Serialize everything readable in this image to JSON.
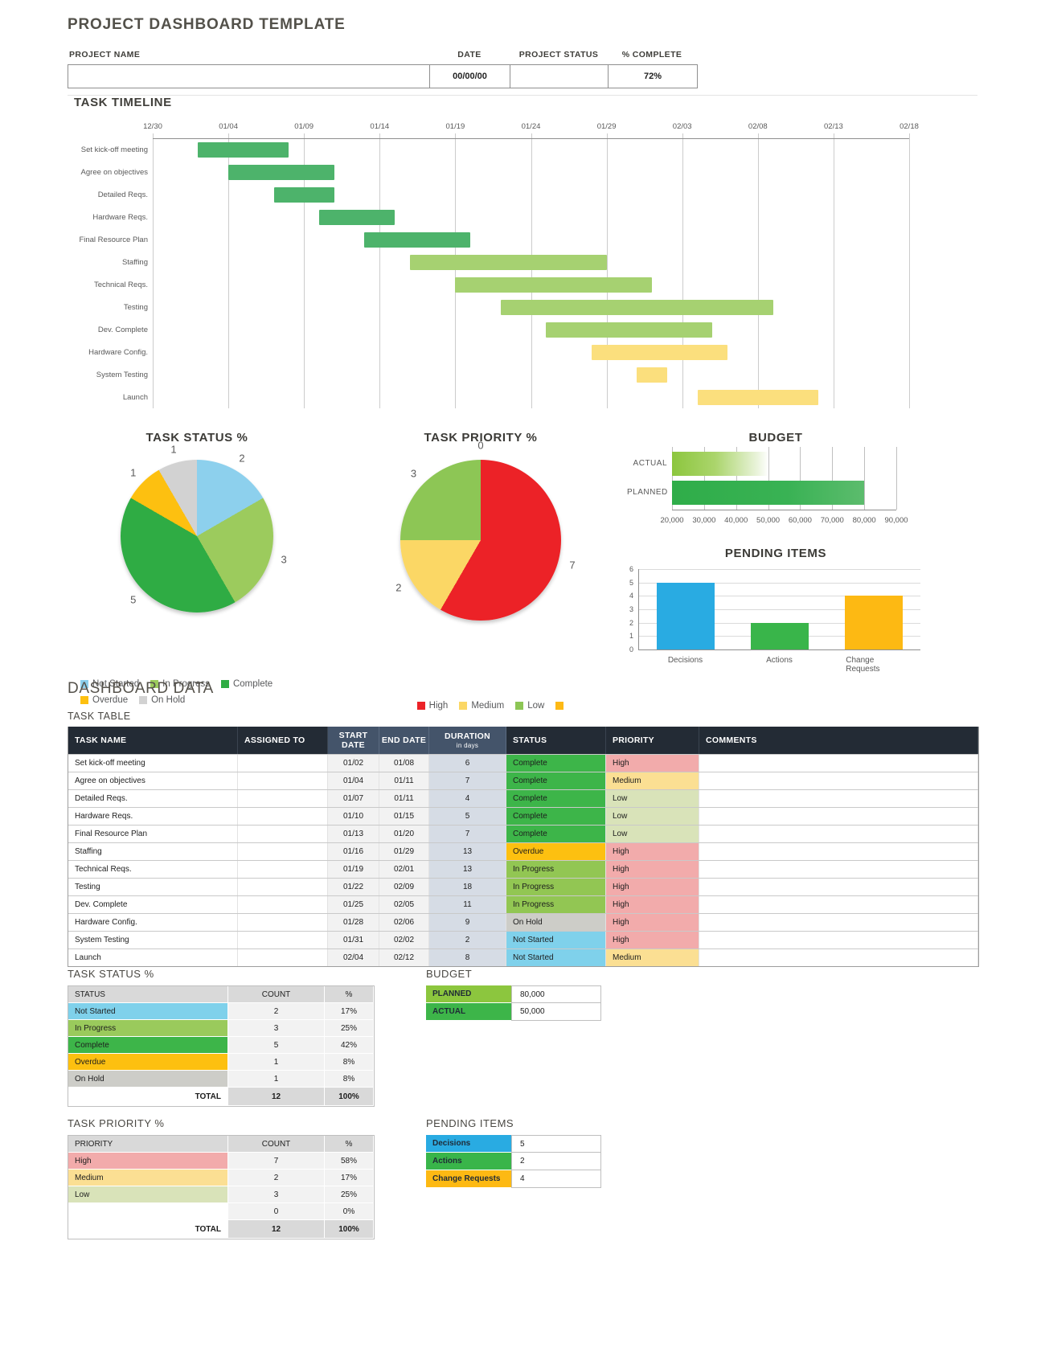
{
  "title": "PROJECT DASHBOARD TEMPLATE",
  "project_info": {
    "fields": [
      {
        "label": "PROJECT NAME",
        "value": ""
      },
      {
        "label": "DATE",
        "value": "00/00/00"
      },
      {
        "label": "PROJECT STATUS",
        "value": ""
      },
      {
        "label": "% COMPLETE",
        "value": "72%"
      }
    ]
  },
  "sections": {
    "task_timeline": "TASK TIMELINE",
    "task_status": "TASK STATUS %",
    "task_priority": "TASK PRIORITY %",
    "budget": "BUDGET",
    "pending_items": "PENDING ITEMS",
    "dashboard_data": "DASHBOARD DATA",
    "task_table": "TASK TABLE"
  },
  "chart_data": [
    {
      "type": "gantt",
      "title": "TASK TIMELINE",
      "x_ticks": [
        "12/30",
        "01/04",
        "01/09",
        "01/14",
        "01/19",
        "01/24",
        "01/29",
        "02/03",
        "02/08",
        "02/13",
        "02/18"
      ],
      "day_span": 50,
      "tasks": [
        {
          "name": "Set kick-off meeting",
          "start_day": 3,
          "duration": 6,
          "color": "#4DB36B"
        },
        {
          "name": "Agree on objectives",
          "start_day": 5,
          "duration": 7,
          "color": "#4DB36B"
        },
        {
          "name": "Detailed Reqs.",
          "start_day": 8,
          "duration": 4,
          "color": "#4DB36B"
        },
        {
          "name": "Hardware Reqs.",
          "start_day": 11,
          "duration": 5,
          "color": "#4DB36B"
        },
        {
          "name": "Final Resource Plan",
          "start_day": 14,
          "duration": 7,
          "color": "#4DB36B"
        },
        {
          "name": "Staffing",
          "start_day": 17,
          "duration": 13,
          "color": "#A6D171"
        },
        {
          "name": "Technical Reqs.",
          "start_day": 20,
          "duration": 13,
          "color": "#A6D171"
        },
        {
          "name": "Testing",
          "start_day": 23,
          "duration": 18,
          "color": "#A6D171"
        },
        {
          "name": "Dev. Complete",
          "start_day": 26,
          "duration": 11,
          "color": "#A6D171"
        },
        {
          "name": "Hardware Config.",
          "start_day": 29,
          "duration": 9,
          "color": "#FBDF7D"
        },
        {
          "name": "System Testing",
          "start_day": 32,
          "duration": 2,
          "color": "#FBDF7D"
        },
        {
          "name": "Launch",
          "start_day": 36,
          "duration": 8,
          "color": "#FBDF7D"
        }
      ]
    },
    {
      "type": "pie",
      "title": "TASK STATUS %",
      "slices": [
        {
          "label": "Not Started",
          "value": 2,
          "color": "#8DD0ED"
        },
        {
          "label": "In Progress",
          "value": 3,
          "color": "#9CCB5D"
        },
        {
          "label": "Complete",
          "value": 5,
          "color": "#2FAC44"
        },
        {
          "label": "Overdue",
          "value": 1,
          "color": "#FDC010"
        },
        {
          "label": "On Hold",
          "value": 1,
          "color": "#D2D2D2"
        }
      ]
    },
    {
      "type": "pie",
      "title": "TASK PRIORITY %",
      "slices": [
        {
          "label": "High",
          "value": 7,
          "color": "#EC2227"
        },
        {
          "label": "Medium",
          "value": 2,
          "color": "#FBD765"
        },
        {
          "label": "Low",
          "value": 3,
          "color": "#8DC655"
        },
        {
          "label": "",
          "value": 0,
          "color": "#FDB915"
        }
      ]
    },
    {
      "type": "bar-horizontal",
      "title": "BUDGET",
      "categories": [
        "ACTUAL",
        "PLANNED"
      ],
      "values": [
        50000,
        80000
      ],
      "axis_min": 20000,
      "axis_max": 90000,
      "x_ticks": [
        "20,000",
        "30,000",
        "40,000",
        "50,000",
        "60,000",
        "70,000",
        "80,000",
        "90,000"
      ]
    },
    {
      "type": "bar",
      "title": "PENDING ITEMS",
      "categories": [
        "Decisions",
        "Actions",
        "Change Requests"
      ],
      "values": [
        5,
        2,
        4
      ],
      "colors": [
        "#29ABE2",
        "#39B54A",
        "#FDB913"
      ],
      "ylim": [
        0,
        6
      ],
      "y_ticks": [
        0,
        1,
        2,
        3,
        4,
        5,
        6
      ]
    }
  ],
  "task_table": {
    "columns": [
      "TASK NAME",
      "ASSIGNED TO",
      "START DATE",
      "END DATE",
      "DURATION",
      "STATUS",
      "PRIORITY",
      "COMMENTS"
    ],
    "duration_note": "in days",
    "rows": [
      {
        "name": "Set kick-off meeting",
        "assigned": "",
        "start": "01/02",
        "end": "01/08",
        "duration": "6",
        "status": "Complete",
        "status_color": "#3DB549",
        "priority": "High",
        "priority_color": "#F2ABAB",
        "comments": ""
      },
      {
        "name": "Agree on objectives",
        "assigned": "",
        "start": "01/04",
        "end": "01/11",
        "duration": "7",
        "status": "Complete",
        "status_color": "#3DB549",
        "priority": "Medium",
        "priority_color": "#FBDF93",
        "comments": ""
      },
      {
        "name": "Detailed Reqs.",
        "assigned": "",
        "start": "01/07",
        "end": "01/11",
        "duration": "4",
        "status": "Complete",
        "status_color": "#3DB549",
        "priority": "Low",
        "priority_color": "#D9E3B9",
        "comments": ""
      },
      {
        "name": "Hardware Reqs.",
        "assigned": "",
        "start": "01/10",
        "end": "01/15",
        "duration": "5",
        "status": "Complete",
        "status_color": "#3DB549",
        "priority": "Low",
        "priority_color": "#D9E3B9",
        "comments": ""
      },
      {
        "name": "Final Resource Plan",
        "assigned": "",
        "start": "01/13",
        "end": "01/20",
        "duration": "7",
        "status": "Complete",
        "status_color": "#3DB549",
        "priority": "Low",
        "priority_color": "#D9E3B9",
        "comments": ""
      },
      {
        "name": "Staffing",
        "assigned": "",
        "start": "01/16",
        "end": "01/29",
        "duration": "13",
        "status": "Overdue",
        "status_color": "#FDC010",
        "priority": "High",
        "priority_color": "#F2ABAB",
        "comments": ""
      },
      {
        "name": "Technical Reqs.",
        "assigned": "",
        "start": "01/19",
        "end": "02/01",
        "duration": "13",
        "status": "In Progress",
        "status_color": "#92C653",
        "priority": "High",
        "priority_color": "#F2ABAB",
        "comments": ""
      },
      {
        "name": "Testing",
        "assigned": "",
        "start": "01/22",
        "end": "02/09",
        "duration": "18",
        "status": "In Progress",
        "status_color": "#92C653",
        "priority": "High",
        "priority_color": "#F2ABAB",
        "comments": ""
      },
      {
        "name": "Dev. Complete",
        "assigned": "",
        "start": "01/25",
        "end": "02/05",
        "duration": "11",
        "status": "In Progress",
        "status_color": "#92C653",
        "priority": "High",
        "priority_color": "#F2ABAB",
        "comments": ""
      },
      {
        "name": "Hardware Config.",
        "assigned": "",
        "start": "01/28",
        "end": "02/06",
        "duration": "9",
        "status": "On Hold",
        "status_color": "#CDCDC8",
        "priority": "High",
        "priority_color": "#F2ABAB",
        "comments": ""
      },
      {
        "name": "System Testing",
        "assigned": "",
        "start": "01/31",
        "end": "02/02",
        "duration": "2",
        "status": "Not Started",
        "status_color": "#7FD1EB",
        "priority": "High",
        "priority_color": "#F2ABAB",
        "comments": ""
      },
      {
        "name": "Launch",
        "assigned": "",
        "start": "02/04",
        "end": "02/12",
        "duration": "8",
        "status": "Not Started",
        "status_color": "#7FD1EB",
        "priority": "Medium",
        "priority_color": "#FBDF93",
        "comments": ""
      }
    ]
  },
  "status_table": {
    "columns": [
      "STATUS",
      "COUNT",
      "%"
    ],
    "rows": [
      {
        "label": "Not Started",
        "count": "2",
        "pct": "17%",
        "color": "#7FD1EB"
      },
      {
        "label": "In Progress",
        "count": "3",
        "pct": "25%",
        "color": "#9ACA5C"
      },
      {
        "label": "Complete",
        "count": "5",
        "pct": "42%",
        "color": "#3DB549"
      },
      {
        "label": "Overdue",
        "count": "1",
        "pct": "8%",
        "color": "#FDC010"
      },
      {
        "label": "On Hold",
        "count": "1",
        "pct": "8%",
        "color": "#CDCDC8"
      }
    ],
    "total": {
      "label": "TOTAL",
      "count": "12",
      "pct": "100%"
    }
  },
  "priority_table": {
    "columns": [
      "PRIORITY",
      "COUNT",
      "%"
    ],
    "rows": [
      {
        "label": "High",
        "count": "7",
        "pct": "58%",
        "color": "#F2ABAB"
      },
      {
        "label": "Medium",
        "count": "2",
        "pct": "17%",
        "color": "#FBDF93"
      },
      {
        "label": "Low",
        "count": "3",
        "pct": "25%",
        "color": "#D9E3B9"
      },
      {
        "label": "",
        "count": "0",
        "pct": "0%",
        "color": "#FFFFFF"
      }
    ],
    "total": {
      "label": "TOTAL",
      "count": "12",
      "pct": "100%"
    }
  },
  "budget_table": {
    "rows": [
      {
        "label": "PLANNED",
        "value": "80,000",
        "color": "#8CC63E"
      },
      {
        "label": "ACTUAL",
        "value": "50,000",
        "color": "#3DB549"
      }
    ]
  },
  "pending_table": {
    "rows": [
      {
        "label": "Decisions",
        "value": "5",
        "color": "#29ABE2"
      },
      {
        "label": "Actions",
        "value": "2",
        "color": "#39B54A"
      },
      {
        "label": "Change Requests",
        "value": "4",
        "color": "#FDB913"
      }
    ]
  }
}
